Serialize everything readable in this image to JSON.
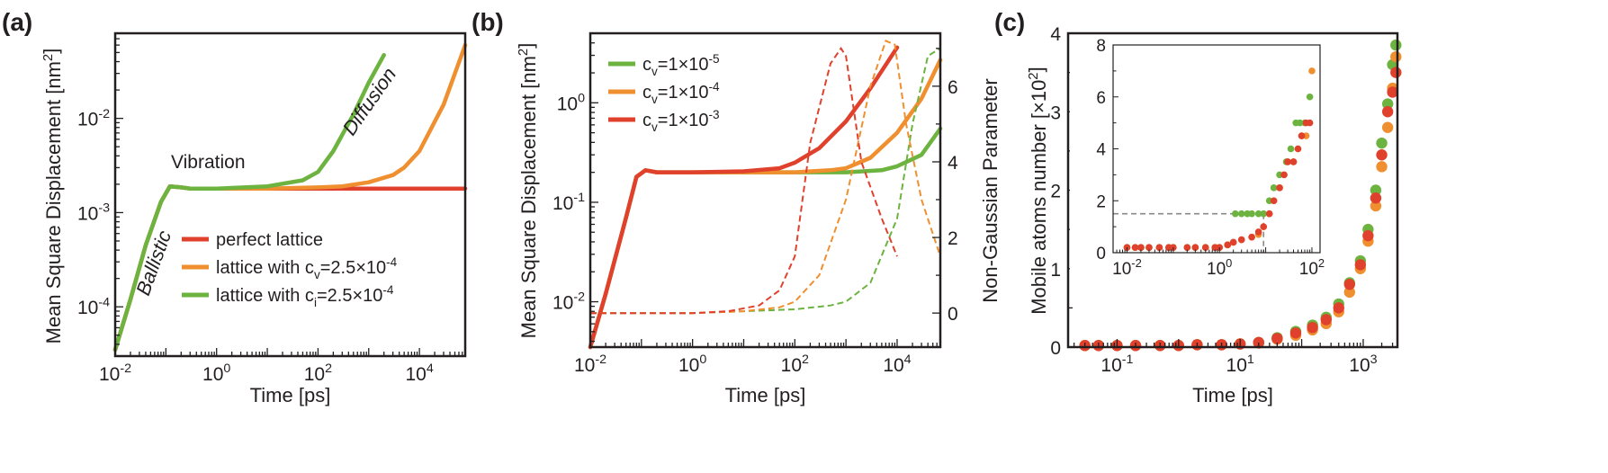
{
  "colors": {
    "red": "#e0412c",
    "orange": "#ef8f2f",
    "green": "#6cb33f",
    "axis": "#231f20",
    "dash_gray": "#8a8a8a"
  },
  "chart_data": [
    {
      "panel": "(a)",
      "type": "line",
      "xscale": "log",
      "yscale": "log",
      "xlim": [
        0.01,
        80000
      ],
      "ylim": [
        3e-05,
        0.08
      ],
      "xlabel": "Time [ps]",
      "ylabel_main": "Mean Square Displacement [nm",
      "ylabel_sup": "2",
      "ylabel_end": "]",
      "x_ticks": [
        {
          "v": 0.01,
          "b": "10",
          "e": "-2"
        },
        {
          "v": 1,
          "b": "10",
          "e": "0"
        },
        {
          "v": 100,
          "b": "10",
          "e": "2"
        },
        {
          "v": 10000,
          "b": "10",
          "e": "4"
        }
      ],
      "y_ticks": [
        {
          "v": 0.0001,
          "b": "10",
          "e": "-4"
        },
        {
          "v": 0.001,
          "b": "10",
          "e": "-3"
        },
        {
          "v": 0.01,
          "b": "10",
          "e": "-2"
        }
      ],
      "annotations": {
        "ballistic": "Ballistic",
        "vibration": "Vibration",
        "diffusion": "Diffusion"
      },
      "legend": [
        {
          "main": "perfect lattice",
          "sub": "",
          "tail": "",
          "color_key": "red"
        },
        {
          "main": "lattice with c",
          "sub": "v",
          "tail": "=2.5×10",
          "sup": "-4",
          "color_key": "orange"
        },
        {
          "main": "lattice with c",
          "sub": "i",
          "tail": "=2.5×10",
          "sup": "-4",
          "color_key": "green"
        }
      ],
      "series": [
        {
          "name": "perfect lattice",
          "color_key": "red",
          "x": [
            0.01,
            0.02,
            0.04,
            0.08,
            0.12,
            0.2,
            0.3,
            0.5,
            1,
            3,
            10,
            100,
            1000,
            10000,
            80000
          ],
          "y": [
            3.5e-05,
            0.00012,
            0.00045,
            0.0013,
            0.0019,
            0.00185,
            0.0018,
            0.0018,
            0.0018,
            0.0018,
            0.0018,
            0.0018,
            0.0018,
            0.0018,
            0.0018
          ]
        },
        {
          "name": "lattice with cv=2.5×10^-4",
          "color_key": "orange",
          "x": [
            0.01,
            0.02,
            0.04,
            0.08,
            0.12,
            0.2,
            0.3,
            0.5,
            1,
            10,
            100,
            300,
            1000,
            3000,
            5000,
            10000,
            30000,
            80000
          ],
          "y": [
            3.5e-05,
            0.00012,
            0.00045,
            0.0013,
            0.0019,
            0.00185,
            0.0018,
            0.0018,
            0.0018,
            0.0018,
            0.00185,
            0.0019,
            0.0021,
            0.0025,
            0.003,
            0.0045,
            0.014,
            0.06
          ]
        },
        {
          "name": "lattice with ci=2.5×10^-4",
          "color_key": "green",
          "x": [
            0.01,
            0.02,
            0.04,
            0.08,
            0.12,
            0.2,
            0.3,
            0.5,
            1,
            10,
            50,
            100,
            200,
            500,
            1000,
            2000
          ],
          "y": [
            3.5e-05,
            0.00012,
            0.00045,
            0.0013,
            0.0019,
            0.00185,
            0.0018,
            0.0018,
            0.0018,
            0.0019,
            0.0022,
            0.0027,
            0.0045,
            0.011,
            0.024,
            0.047
          ]
        }
      ]
    },
    {
      "panel": "(b)",
      "type": "line",
      "xscale": "log",
      "yscale": "log",
      "xlim": [
        0.01,
        70000
      ],
      "ylim": [
        0.0035,
        5
      ],
      "y2lim": [
        -0.9,
        7.4
      ],
      "xlabel": "Time [ps]",
      "ylabel_main": "Mean Square Displacement [nm",
      "ylabel_sup": "2",
      "ylabel_end": "]",
      "y2label": "Non-Gaussian Parameter",
      "x_ticks": [
        {
          "v": 0.01,
          "b": "10",
          "e": "-2"
        },
        {
          "v": 1,
          "b": "10",
          "e": "0"
        },
        {
          "v": 100,
          "b": "10",
          "e": "2"
        },
        {
          "v": 10000,
          "b": "10",
          "e": "4"
        }
      ],
      "y_ticks": [
        {
          "v": 0.01,
          "b": "10",
          "e": "-2"
        },
        {
          "v": 0.1,
          "b": "10",
          "e": "-1"
        },
        {
          "v": 1,
          "b": "10",
          "e": "0"
        }
      ],
      "y2_ticks": [
        0,
        2,
        4,
        6
      ],
      "legend": [
        {
          "main": "c",
          "sub": "v",
          "tail": "=1×10",
          "sup": "-5",
          "color_key": "green"
        },
        {
          "main": "c",
          "sub": "v",
          "tail": "=1×10",
          "sup": "-4",
          "color_key": "orange"
        },
        {
          "main": "c",
          "sub": "v",
          "tail": "=1×10",
          "sup": "-3",
          "color_key": "red"
        }
      ],
      "series": [
        {
          "name": "cv=1×10^-5 MSD",
          "color_key": "green",
          "x": [
            0.01,
            0.02,
            0.05,
            0.08,
            0.12,
            0.2,
            0.5,
            1,
            10,
            100,
            1000,
            5000,
            10000,
            30000,
            70000
          ],
          "y": [
            0.0035,
            0.012,
            0.07,
            0.18,
            0.21,
            0.2,
            0.2,
            0.2,
            0.2,
            0.2,
            0.2,
            0.21,
            0.23,
            0.3,
            0.55
          ]
        },
        {
          "name": "cv=1×10^-4 MSD",
          "color_key": "orange",
          "x": [
            0.01,
            0.02,
            0.05,
            0.08,
            0.12,
            0.2,
            0.5,
            1,
            10,
            100,
            500,
            1000,
            3000,
            10000,
            30000,
            70000
          ],
          "y": [
            0.0035,
            0.012,
            0.07,
            0.18,
            0.21,
            0.2,
            0.2,
            0.2,
            0.2,
            0.2,
            0.21,
            0.22,
            0.28,
            0.5,
            1.1,
            2.7
          ]
        },
        {
          "name": "cv=1×10^-3 MSD",
          "color_key": "red",
          "x": [
            0.01,
            0.02,
            0.05,
            0.08,
            0.12,
            0.2,
            0.5,
            1,
            10,
            50,
            100,
            300,
            1000,
            3000,
            10000
          ],
          "y": [
            0.0035,
            0.012,
            0.07,
            0.18,
            0.21,
            0.2,
            0.2,
            0.2,
            0.205,
            0.22,
            0.25,
            0.35,
            0.65,
            1.4,
            3.6
          ]
        },
        {
          "name": "cv=1×10^-5 NGP",
          "color_key": "green",
          "dashed": true,
          "x": [
            0.01,
            1,
            10,
            100,
            500,
            1000,
            3000,
            10000,
            20000,
            40000,
            70000
          ],
          "y": [
            0,
            0,
            0.05,
            0.1,
            0.2,
            0.3,
            0.8,
            2.5,
            5.0,
            6.8,
            7.0
          ]
        },
        {
          "name": "cv=1×10^-4 NGP",
          "color_key": "orange",
          "dashed": true,
          "x": [
            0.01,
            1,
            10,
            50,
            100,
            300,
            1000,
            3000,
            6000,
            9000,
            15000,
            30000,
            70000
          ],
          "y": [
            0,
            0,
            0.05,
            0.15,
            0.3,
            1.0,
            3.0,
            6.0,
            7.2,
            7.1,
            5.0,
            3.0,
            1.5
          ]
        },
        {
          "name": "cv=1×10^-3 NGP",
          "color_key": "red",
          "dashed": true,
          "x": [
            0.01,
            1,
            5,
            20,
            50,
            100,
            200,
            500,
            800,
            1000,
            2000,
            5000,
            10000
          ],
          "y": [
            0,
            0,
            0.05,
            0.2,
            0.6,
            1.5,
            4.5,
            6.6,
            7.0,
            6.8,
            4.0,
            2.5,
            1.5
          ]
        }
      ]
    },
    {
      "panel": "(c)",
      "type": "scatter",
      "xscale": "log",
      "yscale": "linear",
      "xlim": [
        0.016,
        3600
      ],
      "ylim": [
        0,
        4
      ],
      "xlabel": "Time [ps]",
      "ylabel_main": "Mobile atoms number [×10",
      "ylabel_sup": "2",
      "ylabel_end": "]",
      "x_ticks": [
        {
          "v": 0.1,
          "b": "10",
          "e": "-1"
        },
        {
          "v": 10,
          "b": "10",
          "e": "1"
        },
        {
          "v": 1000,
          "b": "10",
          "e": "3"
        }
      ],
      "y_ticks": [
        0,
        1,
        2,
        3,
        4
      ],
      "series": [
        {
          "name": "green",
          "color_key": "green",
          "x": [
            0.03,
            0.05,
            0.1,
            0.2,
            0.5,
            1,
            2,
            5,
            10,
            20,
            40,
            80,
            150,
            250,
            400,
            600,
            900,
            1200,
            1600,
            2000,
            2500,
            3000,
            3400
          ],
          "y": [
            0.02,
            0.02,
            0.02,
            0.02,
            0.02,
            0.02,
            0.03,
            0.03,
            0.04,
            0.06,
            0.12,
            0.2,
            0.28,
            0.38,
            0.55,
            0.82,
            1.1,
            1.5,
            2.0,
            2.6,
            3.1,
            3.6,
            3.85
          ]
        },
        {
          "name": "orange",
          "color_key": "orange",
          "x": [
            0.03,
            0.05,
            0.1,
            0.2,
            0.5,
            1,
            2,
            5,
            10,
            20,
            40,
            80,
            150,
            250,
            400,
            600,
            900,
            1200,
            1600,
            2000,
            2500,
            3000,
            3400
          ],
          "y": [
            0.02,
            0.02,
            0.02,
            0.02,
            0.02,
            0.02,
            0.03,
            0.03,
            0.04,
            0.05,
            0.1,
            0.15,
            0.22,
            0.3,
            0.45,
            0.7,
            1.0,
            1.35,
            1.8,
            2.3,
            2.8,
            3.3,
            3.7
          ]
        },
        {
          "name": "red",
          "color_key": "red",
          "x": [
            0.03,
            0.05,
            0.1,
            0.2,
            0.5,
            1,
            2,
            5,
            10,
            20,
            40,
            80,
            150,
            250,
            400,
            600,
            900,
            1200,
            1600,
            2000,
            2500,
            3000,
            3400
          ],
          "y": [
            0.02,
            0.02,
            0.02,
            0.02,
            0.02,
            0.02,
            0.03,
            0.03,
            0.04,
            0.06,
            0.11,
            0.18,
            0.25,
            0.35,
            0.5,
            0.8,
            1.05,
            1.42,
            1.9,
            2.45,
            3.0,
            3.25,
            3.5
          ]
        }
      ],
      "inset": {
        "xscale": "log",
        "yscale": "linear",
        "xlim": [
          0.005,
          150
        ],
        "ylim": [
          0,
          8
        ],
        "x_ticks": [
          {
            "v": 0.01,
            "b": "10",
            "e": "-2"
          },
          {
            "v": 1,
            "b": "10",
            "e": "0"
          },
          {
            "v": 100,
            "b": "10",
            "e": "2"
          }
        ],
        "y_ticks": [
          0,
          2,
          4,
          6,
          8
        ],
        "threshold": {
          "y": 1.5,
          "x": 9
        },
        "series": [
          {
            "name": "green",
            "color_key": "green",
            "x": [
              0.01,
              0.015,
              0.02,
              0.03,
              0.05,
              0.08,
              0.1,
              0.2,
              0.3,
              0.5,
              0.8,
              1,
              1.5,
              2.2,
              3,
              4,
              5,
              7,
              9,
              12,
              15,
              20,
              28,
              35,
              45,
              55,
              70,
              90
            ],
            "y": [
              0.2,
              0.2,
              0.2,
              0.2,
              0.2,
              0.2,
              0.2,
              0.2,
              0.2,
              0.2,
              0.2,
              0.2,
              0.3,
              1.5,
              1.5,
              1.5,
              1.5,
              1.5,
              1.5,
              2.0,
              2.5,
              3.0,
              3.5,
              4.0,
              5.0,
              5.0,
              5.0,
              6.0
            ]
          },
          {
            "name": "orange",
            "color_key": "orange",
            "x": [
              0.01,
              0.015,
              0.02,
              0.03,
              0.05,
              0.08,
              0.1,
              0.2,
              0.3,
              0.5,
              0.8,
              1,
              1.5,
              2,
              3,
              5,
              7,
              9,
              12,
              15,
              20,
              25,
              30,
              40,
              50,
              60,
              75,
              100
            ],
            "y": [
              0.2,
              0.2,
              0.2,
              0.2,
              0.2,
              0.2,
              0.2,
              0.2,
              0.2,
              0.2,
              0.2,
              0.2,
              0.3,
              0.4,
              0.5,
              0.6,
              0.7,
              1.0,
              1.5,
              2.0,
              2.5,
              3.0,
              3.5,
              3.5,
              4.0,
              4.5,
              4.5,
              7.0
            ]
          },
          {
            "name": "red",
            "color_key": "red",
            "x": [
              0.01,
              0.015,
              0.02,
              0.03,
              0.05,
              0.08,
              0.1,
              0.2,
              0.3,
              0.5,
              0.8,
              1,
              1.5,
              2,
              3,
              5,
              7,
              9,
              12,
              15,
              20,
              25,
              30,
              40,
              50,
              60,
              75,
              90
            ],
            "y": [
              0.2,
              0.2,
              0.2,
              0.2,
              0.2,
              0.2,
              0.2,
              0.2,
              0.2,
              0.2,
              0.2,
              0.2,
              0.3,
              0.4,
              0.5,
              0.6,
              0.8,
              1.0,
              1.5,
              2.0,
              2.5,
              3.0,
              3.5,
              3.5,
              4.0,
              4.5,
              5.0,
              5.0
            ]
          }
        ]
      }
    }
  ]
}
